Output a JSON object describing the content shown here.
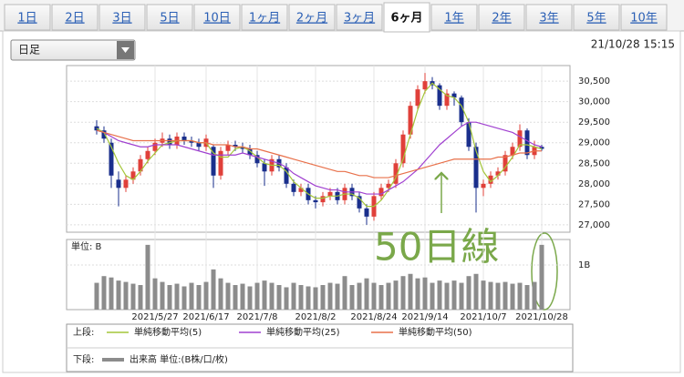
{
  "tabs": [
    "1日",
    "2日",
    "3日",
    "5日",
    "10日",
    "1ヶ月",
    "2ヶ月",
    "3ヶ月",
    "6ヶ月",
    "1年",
    "2年",
    "3年",
    "5年",
    "10年"
  ],
  "active_tab": 8,
  "interval_select": "日足",
  "timestamp": "21/10/28 15:15",
  "legend": {
    "upper_label": "上段:",
    "lower_label": "下段:"
  },
  "chart_data": [
    {
      "type": "candlestick",
      "annotation": "50日線",
      "up_color": "#e0403a",
      "down_color": "#1a2f8c",
      "categories": [
        null,
        null,
        null,
        null,
        null,
        null,
        null,
        null,
        "2021/5/27",
        null,
        null,
        null,
        null,
        null,
        null,
        "2021/6/17",
        null,
        null,
        null,
        null,
        null,
        null,
        "2021/7/8",
        null,
        null,
        null,
        null,
        null,
        null,
        null,
        "2021/8/2",
        null,
        null,
        null,
        null,
        null,
        null,
        null,
        "2021/8/24",
        null,
        null,
        null,
        null,
        null,
        null,
        "2021/9/14",
        null,
        null,
        null,
        null,
        null,
        null,
        null,
        "2021/10/7",
        null,
        null,
        null,
        null,
        null,
        null,
        null,
        "2021/10/28"
      ],
      "open": [
        29400,
        29300,
        29000,
        28100,
        27900,
        28100,
        28300,
        28600,
        28800,
        29000,
        29100,
        28950,
        29150,
        29050,
        29000,
        28900,
        28900,
        28200,
        28800,
        28950,
        28900,
        28850,
        28700,
        28500,
        28300,
        28600,
        28400,
        28000,
        27800,
        27900,
        27600,
        27550,
        27700,
        27800,
        27600,
        27900,
        27700,
        27400,
        27200,
        27700,
        27900,
        28000,
        28500,
        29200,
        29900,
        30300,
        30500,
        30400,
        29900,
        30200,
        30100,
        29500,
        28900,
        27900,
        28000,
        28200,
        28300,
        28700,
        28900,
        29300,
        28700,
        28900
      ],
      "high": [
        29550,
        29400,
        29100,
        28300,
        28200,
        28400,
        28700,
        28900,
        29100,
        29250,
        29200,
        29250,
        29250,
        29150,
        29100,
        29200,
        28950,
        28900,
        29050,
        29050,
        29000,
        28950,
        28800,
        28600,
        28700,
        28700,
        28500,
        28100,
        28000,
        28000,
        27700,
        27800,
        27900,
        27900,
        28000,
        28000,
        27800,
        27500,
        27800,
        28000,
        28100,
        28600,
        29300,
        30000,
        30400,
        30700,
        30600,
        30450,
        30300,
        30250,
        30150,
        29600,
        29000,
        28100,
        28300,
        28400,
        28800,
        29000,
        29450,
        29350,
        29050,
        28950
      ],
      "low": [
        29200,
        29000,
        27900,
        27450,
        27800,
        28000,
        28200,
        28500,
        28700,
        28900,
        28850,
        28850,
        28950,
        28900,
        28800,
        28800,
        27900,
        28100,
        28700,
        28800,
        28750,
        28600,
        28400,
        27950,
        28200,
        28300,
        27900,
        27700,
        27700,
        27500,
        27400,
        27450,
        27600,
        27500,
        27500,
        27600,
        27300,
        27000,
        27100,
        27600,
        27800,
        27900,
        28400,
        29100,
        29800,
        30200,
        30300,
        29800,
        29800,
        29900,
        29400,
        28800,
        27300,
        27700,
        27900,
        28100,
        28200,
        28600,
        28800,
        28600,
        28600,
        28800
      ],
      "close": [
        29300,
        29100,
        28200,
        27900,
        28100,
        28300,
        28600,
        28800,
        29000,
        29100,
        28950,
        29150,
        29050,
        29000,
        28900,
        29100,
        28200,
        28800,
        28950,
        28900,
        28850,
        28700,
        28500,
        28300,
        28600,
        28400,
        28000,
        27800,
        27900,
        27600,
        27550,
        27700,
        27800,
        27600,
        27900,
        27700,
        27400,
        27200,
        27700,
        27900,
        28000,
        28500,
        29200,
        29900,
        30300,
        30500,
        30400,
        29900,
        30200,
        30100,
        29500,
        28900,
        27900,
        28000,
        28200,
        28300,
        28700,
        28900,
        29300,
        28700,
        28900,
        28850
      ],
      "series": [
        {
          "name": "単純移動平均(5)",
          "color": "#a4c639",
          "values": [
            29350,
            29250,
            28900,
            28500,
            28200,
            28100,
            28300,
            28550,
            28750,
            28950,
            29000,
            29050,
            29050,
            29050,
            29000,
            29000,
            28750,
            28650,
            28650,
            28850,
            28900,
            28800,
            28650,
            28500,
            28450,
            28450,
            28300,
            28050,
            27900,
            27750,
            27650,
            27650,
            27700,
            27700,
            27750,
            27750,
            27650,
            27450,
            27450,
            27600,
            27850,
            28150,
            28600,
            29200,
            29800,
            30250,
            30450,
            30300,
            30150,
            30100,
            29900,
            29500,
            28800,
            28300,
            28050,
            28200,
            28400,
            28650,
            28950,
            28950,
            28900,
            28850
          ]
        },
        {
          "name": "単純移動平均(25)",
          "color": "#a040d0",
          "values": [
            29300,
            29250,
            29150,
            29050,
            29000,
            28950,
            28900,
            28900,
            28950,
            28950,
            28950,
            28950,
            28900,
            28850,
            28800,
            28750,
            28700,
            28700,
            28700,
            28700,
            28750,
            28700,
            28650,
            28600,
            28550,
            28500,
            28400,
            28250,
            28150,
            28050,
            27950,
            27900,
            27850,
            27850,
            27800,
            27800,
            27800,
            27750,
            27750,
            27750,
            27850,
            27950,
            28050,
            28200,
            28350,
            28550,
            28750,
            28950,
            29100,
            29250,
            29400,
            29500,
            29500,
            29450,
            29400,
            29350,
            29300,
            29250,
            29150,
            29050,
            28950,
            28900
          ]
        },
        {
          "name": "単純移動平均(50)",
          "color": "#e8704a",
          "values": [
            29300,
            29250,
            29200,
            29150,
            29100,
            29050,
            29050,
            29050,
            29050,
            29050,
            29050,
            29050,
            29050,
            29050,
            29000,
            29000,
            28950,
            28950,
            28950,
            28900,
            28900,
            28850,
            28850,
            28800,
            28750,
            28700,
            28650,
            28600,
            28550,
            28500,
            28450,
            28400,
            28350,
            28300,
            28300,
            28250,
            28200,
            28200,
            28150,
            28150,
            28150,
            28200,
            28250,
            28300,
            28350,
            28400,
            28450,
            28500,
            28550,
            28600,
            28600,
            28600,
            28600,
            28600,
            28600,
            28650,
            28650,
            28700,
            28750,
            28750,
            28800,
            28800
          ]
        }
      ],
      "ylim": [
        26820,
        30880
      ],
      "yticks": [
        {
          "value": 27000,
          "label": "27,000"
        },
        {
          "value": 27500,
          "label": "27,500"
        },
        {
          "value": 28000,
          "label": "28,000"
        },
        {
          "value": 28500,
          "label": "28,500"
        },
        {
          "value": 29000,
          "label": "29,000"
        },
        {
          "value": 29500,
          "label": "29,500"
        },
        {
          "value": 30000,
          "label": "30,000"
        },
        {
          "value": 30500,
          "label": "30,500"
        }
      ],
      "grid": true
    },
    {
      "type": "bar",
      "unit_label": "単位: B",
      "name": "出来高 単位:(B株/口/枚)",
      "color": "#8c8c8c",
      "values": [
        0.6,
        0.75,
        0.72,
        0.65,
        0.62,
        0.58,
        0.55,
        1.45,
        0.7,
        0.62,
        0.55,
        0.58,
        0.52,
        0.6,
        0.55,
        0.62,
        0.9,
        0.7,
        0.6,
        0.55,
        0.58,
        0.52,
        0.6,
        0.65,
        0.6,
        0.55,
        0.5,
        0.6,
        0.55,
        0.52,
        0.5,
        0.55,
        0.6,
        0.58,
        0.75,
        0.55,
        0.6,
        0.7,
        0.6,
        0.55,
        0.6,
        0.65,
        0.75,
        0.8,
        0.7,
        0.72,
        0.6,
        0.65,
        0.6,
        0.65,
        0.6,
        0.75,
        0.8,
        0.65,
        0.62,
        0.6,
        0.62,
        0.58,
        0.6,
        0.55,
        0.62,
        1.45
      ],
      "ylim": [
        0,
        1.57
      ],
      "yticks": [
        {
          "value": 1,
          "label": "1B"
        }
      ]
    }
  ]
}
